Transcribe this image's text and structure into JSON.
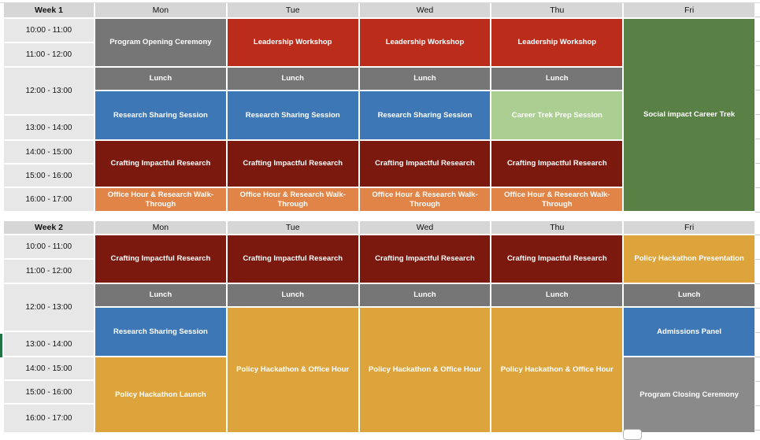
{
  "palette": {
    "gray": "#767676",
    "gray_light": "#8A8A8A",
    "red": "#BC2C1A",
    "dark_red": "#7B190F",
    "blue": "#3E77B5",
    "light_green": "#ABCE92",
    "green": "#5A8145",
    "orange": "#E08448",
    "gold": "#DEA43C",
    "time_bg": "#E8E7E7",
    "header_bg": "#D6D6D6",
    "selection_green": "#217346"
  },
  "sections": [
    {
      "week_label": "Week 1",
      "days": [
        "Mon",
        "Tue",
        "Wed",
        "Thu",
        "Fri"
      ],
      "times": [
        {
          "label": "10:00 - 11:00",
          "row": 1,
          "span": 1
        },
        {
          "label": "11:00 - 12:00",
          "row": 2,
          "span": 1
        },
        {
          "label": "12:00 - 13:00",
          "row": 3,
          "span": 2
        },
        {
          "label": "13:00 - 14:00",
          "row": 5,
          "span": 1
        },
        {
          "label": "14:00 - 15:00",
          "row": 6,
          "span": 1
        },
        {
          "label": "15:00 - 16:00",
          "row": 7,
          "span": 1
        },
        {
          "label": "16:00 - 17:00",
          "row": 8,
          "span": 1
        }
      ],
      "events": [
        {
          "day": 1,
          "row": 1,
          "span": 2,
          "label": "Program Opening Ceremony",
          "color": "gray"
        },
        {
          "day": 1,
          "row": 3,
          "span": 1,
          "label": "Lunch",
          "color": "gray"
        },
        {
          "day": 1,
          "row": 4,
          "span": 2,
          "label": "Research Sharing Session",
          "color": "blue"
        },
        {
          "day": 1,
          "row": 6,
          "span": 2,
          "label": "Crafting Impactful Research",
          "color": "dark_red"
        },
        {
          "day": 1,
          "row": 8,
          "span": 1,
          "label": "Office Hour & Research Walk-Through",
          "color": "orange"
        },
        {
          "day": 2,
          "row": 1,
          "span": 2,
          "label": "Leadership Workshop",
          "color": "red"
        },
        {
          "day": 2,
          "row": 3,
          "span": 1,
          "label": "Lunch",
          "color": "gray"
        },
        {
          "day": 2,
          "row": 4,
          "span": 2,
          "label": "Research Sharing Session",
          "color": "blue"
        },
        {
          "day": 2,
          "row": 6,
          "span": 2,
          "label": "Crafting Impactful Research",
          "color": "dark_red"
        },
        {
          "day": 2,
          "row": 8,
          "span": 1,
          "label": "Office Hour & Research Walk-Through",
          "color": "orange"
        },
        {
          "day": 3,
          "row": 1,
          "span": 2,
          "label": "Leadership Workshop",
          "color": "red"
        },
        {
          "day": 3,
          "row": 3,
          "span": 1,
          "label": "Lunch",
          "color": "gray"
        },
        {
          "day": 3,
          "row": 4,
          "span": 2,
          "label": "Research Sharing Session",
          "color": "blue"
        },
        {
          "day": 3,
          "row": 6,
          "span": 2,
          "label": "Crafting Impactful Research",
          "color": "dark_red"
        },
        {
          "day": 3,
          "row": 8,
          "span": 1,
          "label": "Office Hour & Research Walk-Through",
          "color": "orange"
        },
        {
          "day": 4,
          "row": 1,
          "span": 2,
          "label": "Leadership Workshop",
          "color": "red"
        },
        {
          "day": 4,
          "row": 3,
          "span": 1,
          "label": "Lunch",
          "color": "gray"
        },
        {
          "day": 4,
          "row": 4,
          "span": 2,
          "label": "Career Trek Prep Session",
          "color": "light_green"
        },
        {
          "day": 4,
          "row": 6,
          "span": 2,
          "label": "Crafting Impactful Research",
          "color": "dark_red"
        },
        {
          "day": 4,
          "row": 8,
          "span": 1,
          "label": "Office Hour & Research Walk-Through",
          "color": "orange"
        },
        {
          "day": 5,
          "row": 1,
          "span": 8,
          "label": "Social impact Career Trek",
          "color": "green"
        }
      ]
    },
    {
      "week_label": "Week 2",
      "days": [
        "Mon",
        "Tue",
        "Wed",
        "Thu",
        "Fri"
      ],
      "times": [
        {
          "label": "10:00 - 11:00",
          "row": 1,
          "span": 1
        },
        {
          "label": "11:00 - 12:00",
          "row": 2,
          "span": 1
        },
        {
          "label": "12:00 - 13:00",
          "row": 3,
          "span": 2
        },
        {
          "label": "13:00 - 14:00",
          "row": 5,
          "span": 1
        },
        {
          "label": "14:00 - 15:00",
          "row": 6,
          "span": 1
        },
        {
          "label": "15:00 - 16:00",
          "row": 7,
          "span": 1
        },
        {
          "label": "16:00 - 17:00",
          "row": 8,
          "span": 1
        }
      ],
      "events": [
        {
          "day": 1,
          "row": 1,
          "span": 2,
          "label": "Crafting Impactful Research",
          "color": "dark_red"
        },
        {
          "day": 1,
          "row": 3,
          "span": 1,
          "label": "Lunch",
          "color": "gray"
        },
        {
          "day": 1,
          "row": 4,
          "span": 2,
          "label": "Research Sharing Session",
          "color": "blue"
        },
        {
          "day": 1,
          "row": 6,
          "span": 3,
          "label": "Policy Hackathon Launch",
          "color": "gold"
        },
        {
          "day": 2,
          "row": 1,
          "span": 2,
          "label": "Crafting Impactful Research",
          "color": "dark_red"
        },
        {
          "day": 2,
          "row": 3,
          "span": 1,
          "label": "Lunch",
          "color": "gray"
        },
        {
          "day": 2,
          "row": 4,
          "span": 5,
          "label": "Policy Hackathon & Office Hour",
          "color": "gold"
        },
        {
          "day": 3,
          "row": 1,
          "span": 2,
          "label": "Crafting Impactful Research",
          "color": "dark_red"
        },
        {
          "day": 3,
          "row": 3,
          "span": 1,
          "label": "Lunch",
          "color": "gray"
        },
        {
          "day": 3,
          "row": 4,
          "span": 5,
          "label": "Policy Hackathon & Office Hour",
          "color": "gold"
        },
        {
          "day": 4,
          "row": 1,
          "span": 2,
          "label": "Crafting Impactful Research",
          "color": "dark_red"
        },
        {
          "day": 4,
          "row": 3,
          "span": 1,
          "label": "Lunch",
          "color": "gray"
        },
        {
          "day": 4,
          "row": 4,
          "span": 5,
          "label": "Policy Hackathon & Office Hour",
          "color": "gold"
        },
        {
          "day": 5,
          "row": 1,
          "span": 2,
          "label": "Policy Hackathon Presentation",
          "color": "gold"
        },
        {
          "day": 5,
          "row": 3,
          "span": 1,
          "label": "Lunch",
          "color": "gray"
        },
        {
          "day": 5,
          "row": 4,
          "span": 2,
          "label": "Admissions Panel",
          "color": "blue"
        },
        {
          "day": 5,
          "row": 6,
          "span": 3,
          "label": "Program Closing Ceremony",
          "color": "gray_light"
        }
      ]
    }
  ]
}
